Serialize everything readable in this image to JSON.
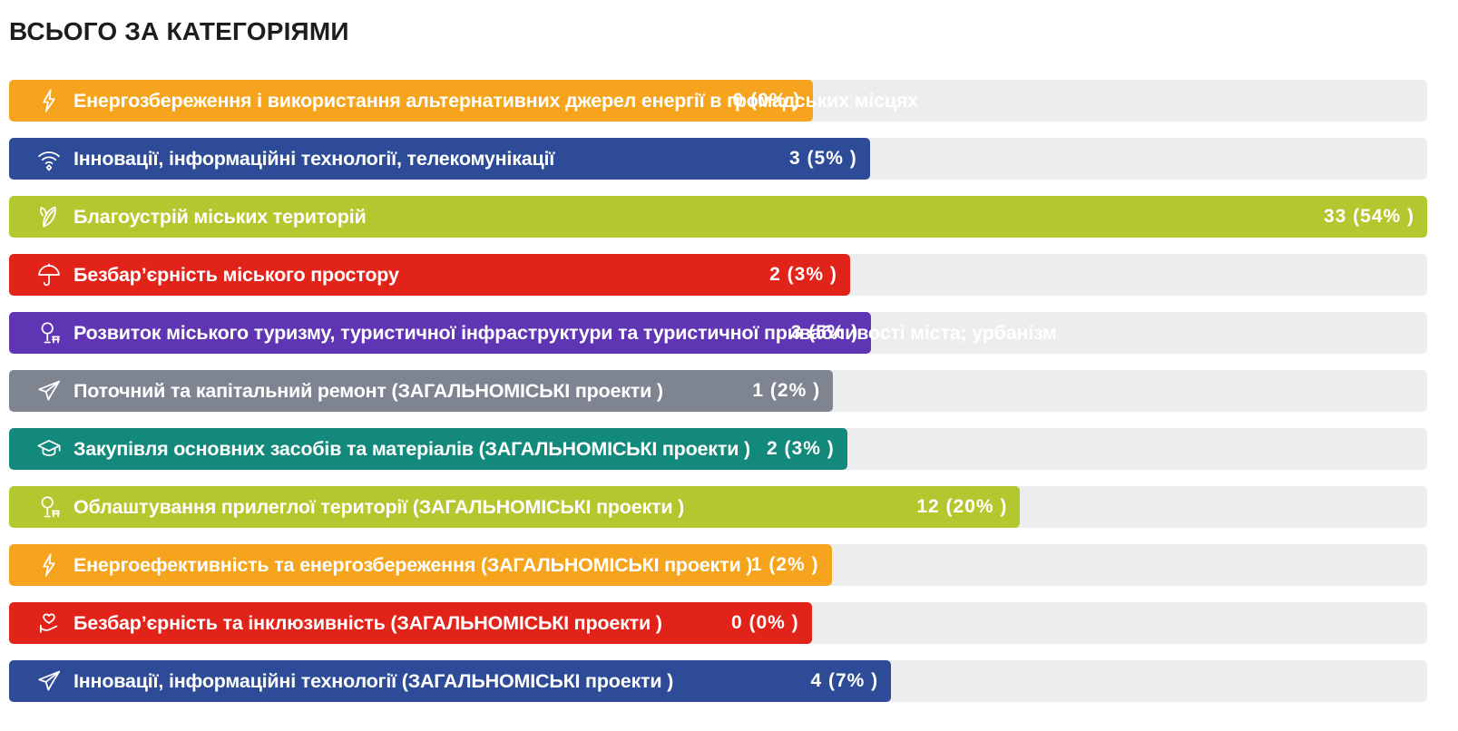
{
  "chart_data": {
    "type": "bar",
    "orientation": "horizontal",
    "title": "ВСЬОГО ЗА КАТЕГОРІЯМИ",
    "legend_position": "none",
    "grid": false,
    "track_color": "#ECEDEF",
    "value_label_format": "count (percent% )",
    "max_value": 33,
    "items": [
      {
        "label": "Енергозбереження і використання альтернативних джерел енергії в громадських місцях",
        "count": 0,
        "percent": 0,
        "value_text": "0 (0% )",
        "color": "#F6A41D",
        "icon": "lightning-icon",
        "bar_pct": 56.7
      },
      {
        "label": "Інновації, інформаційні технології, телекомунікації",
        "count": 3,
        "percent": 5,
        "value_text": "3 (5% )",
        "color": "#2D4B97",
        "icon": "wifi-icon",
        "bar_pct": 60.7
      },
      {
        "label": "Благоустрій міських територій",
        "count": 33,
        "percent": 54,
        "value_text": "33 (54% )",
        "color": "#B4C72F",
        "icon": "leaf-icon",
        "bar_pct": 100
      },
      {
        "label": "Безбар’єрність міського простору",
        "count": 2,
        "percent": 3,
        "value_text": "2 (3% )",
        "color": "#E2231A",
        "icon": "umbrella-icon",
        "bar_pct": 59.3
      },
      {
        "label": "Розвиток міського туризму, туристичної інфраструктури та туристичної привабливості міста; урбанізм",
        "count": 3,
        "percent": 5,
        "value_text": "3 (5% )",
        "color": "#5F35B4",
        "icon": "tree-bench-icon",
        "bar_pct": 60.8
      },
      {
        "label": "Поточний та капітальний ремонт (ЗАГАЛЬНОМІСЬКІ проекти )",
        "count": 1,
        "percent": 2,
        "value_text": "1 (2% )",
        "color": "#7E8591",
        "icon": "paper-plane-icon",
        "bar_pct": 58.1
      },
      {
        "label": "Закупівля основних засобів та матеріалів (ЗАГАЛЬНОМІСЬКІ проекти )",
        "count": 2,
        "percent": 3,
        "value_text": "2 (3% )",
        "color": "#12897B",
        "icon": "graduation-cap-icon",
        "bar_pct": 59.1
      },
      {
        "label": "Облаштування прилеглої території (ЗАГАЛЬНОМІСЬКІ проекти )",
        "count": 12,
        "percent": 20,
        "value_text": "12 (20% )",
        "color": "#B4C72F",
        "icon": "tree-bench-icon",
        "bar_pct": 71.3
      },
      {
        "label": "Енергоефективність та енергозбереження (ЗАГАЛЬНОМІСЬКІ проекти )",
        "count": 1,
        "percent": 2,
        "value_text": "1 (2% )",
        "color": "#F6A41D",
        "icon": "lightning-icon",
        "bar_pct": 58.0
      },
      {
        "label": "Безбар’єрність та інклюзивність (ЗАГАЛЬНОМІСЬКІ проекти )",
        "count": 0,
        "percent": 0,
        "value_text": "0 (0% )",
        "color": "#E2231A",
        "icon": "hand-heart-icon",
        "bar_pct": 56.6
      },
      {
        "label": "Інновації, інформаційні технології (ЗАГАЛЬНОМІСЬКІ проекти )",
        "count": 4,
        "percent": 7,
        "value_text": "4 (7% )",
        "color": "#2D4B97",
        "icon": "paper-plane-icon",
        "bar_pct": 62.2
      }
    ]
  }
}
